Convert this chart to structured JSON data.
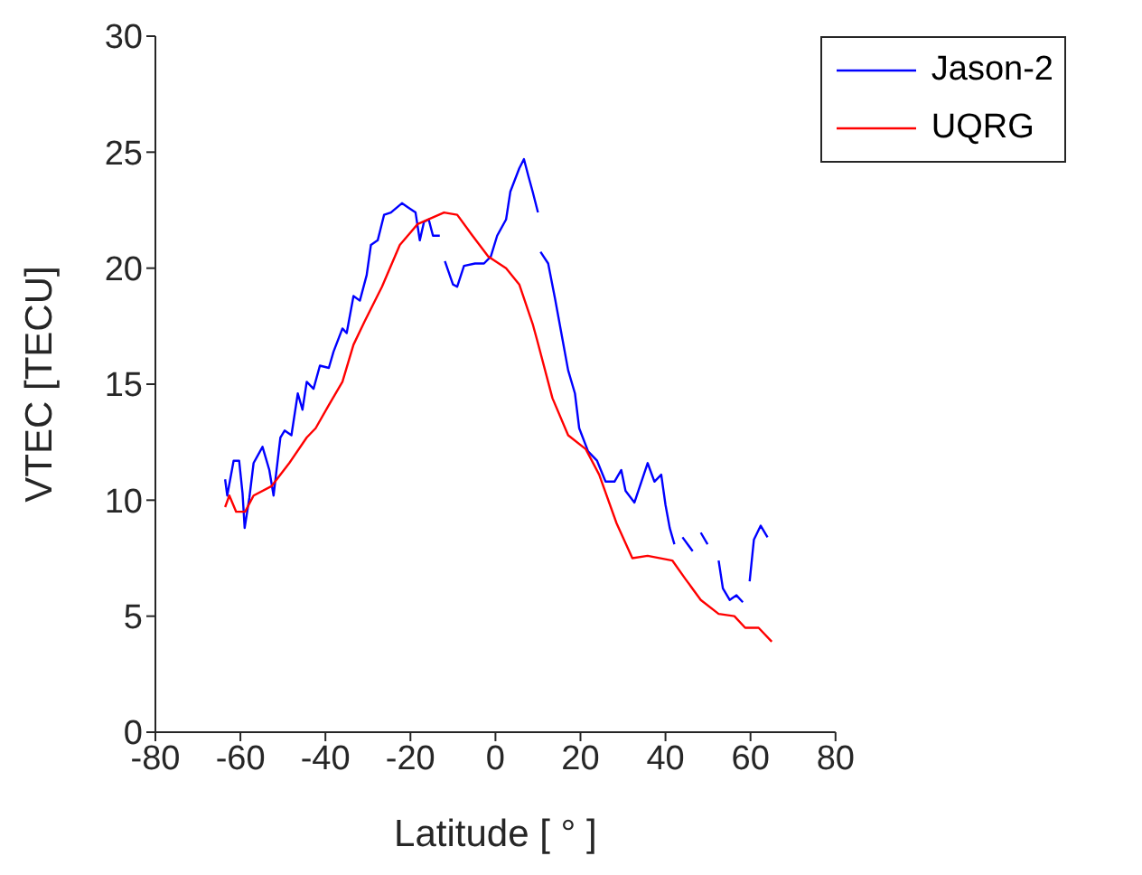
{
  "chart_data": {
    "type": "line",
    "xlabel": "Latitude [ ° ]",
    "ylabel": "VTEC [TECU]",
    "xlim": [
      -80,
      80
    ],
    "xticks": [
      -80,
      -60,
      -40,
      -20,
      0,
      20,
      40,
      60,
      80
    ],
    "ylim": [
      0,
      30
    ],
    "yticks": [
      0,
      5,
      10,
      15,
      20,
      25,
      30
    ],
    "grid": false,
    "legend": "top right",
    "marker": "none",
    "line_style": "solid",
    "series": [
      {
        "name": "Jason-2",
        "color": "#0000ff",
        "x": [
          -63.6,
          -63.1,
          -61.6,
          -60.3,
          -59.5,
          -59.0,
          -57.9,
          -56.9,
          -54.8,
          -53.2,
          -52.2,
          -50.6,
          -49.6,
          -48.0,
          -46.5,
          -45.4,
          -44.4,
          -42.8,
          -41.3,
          -39.2,
          -38.1,
          -36.0,
          -35.0,
          -33.4,
          -31.9,
          -30.3,
          -29.3,
          -27.7,
          -26.2,
          -24.6,
          -22.0,
          -20.4,
          -18.8,
          -17.8,
          -16.8,
          -15.7,
          -14.7,
          -13.1,
          -12.5,
          -11.9,
          -10.0,
          -9.0,
          -7.4,
          -4.8,
          -2.7,
          -1.1,
          0.4,
          2.5,
          3.5,
          5.6,
          6.7,
          7.7,
          8.75,
          10.0,
          10.3,
          10.6,
          12.4,
          14.0,
          15.5,
          17.1,
          18.7,
          19.7,
          21.8,
          23.9,
          25.9,
          28.0,
          29.6,
          30.6,
          32.7,
          35.8,
          37.4,
          39.0,
          40.0,
          41.0,
          42.1,
          43.1,
          44.0,
          46.4,
          47.2,
          48.3,
          49.9,
          51.2,
          52.5,
          53.5,
          55.1,
          56.7,
          58.2,
          59.0,
          59.8,
          60.8,
          62.4,
          64.0
        ],
        "values": [
          10.9,
          10.2,
          11.7,
          11.7,
          10.3,
          8.8,
          10.1,
          11.6,
          12.3,
          11.3,
          10.2,
          12.7,
          13.0,
          12.8,
          14.6,
          13.9,
          15.1,
          14.8,
          15.8,
          15.7,
          16.4,
          17.4,
          17.2,
          18.8,
          18.6,
          19.7,
          21.0,
          21.2,
          22.3,
          22.4,
          22.8,
          22.6,
          22.4,
          21.2,
          22.0,
          22.1,
          21.4,
          21.4,
          null,
          20.3,
          19.3,
          19.2,
          20.1,
          20.2,
          20.2,
          20.5,
          21.4,
          22.1,
          23.3,
          24.3,
          24.7,
          24.0,
          23.3,
          22.4,
          null,
          20.7,
          20.2,
          18.7,
          17.2,
          15.6,
          14.6,
          13.1,
          12.1,
          11.7,
          10.8,
          10.8,
          11.3,
          10.4,
          9.9,
          11.6,
          10.8,
          11.1,
          9.8,
          8.8,
          8.1,
          null,
          8.4,
          7.8,
          null,
          8.6,
          8.1,
          null,
          7.4,
          6.2,
          5.7,
          5.9,
          5.6,
          null,
          6.5,
          8.3,
          8.9,
          8.4
        ]
      },
      {
        "name": "UQRG",
        "color": "#ff0000",
        "x": [
          -63.6,
          -62.6,
          -61.0,
          -58.9,
          -56.9,
          -52.7,
          -48.5,
          -44.4,
          -42.3,
          -39.2,
          -36.0,
          -33.4,
          -30.8,
          -26.7,
          -22.5,
          -18.3,
          -12.1,
          -9.0,
          -5.8,
          -1.7,
          2.5,
          5.6,
          8.75,
          9.8,
          13.4,
          17.1,
          21.25,
          24.4,
          28.5,
          32.2,
          35.8,
          41.6,
          44.7,
          48.3,
          52.5,
          56.2,
          58.75,
          61.9,
          65.0
        ],
        "values": [
          9.7,
          10.2,
          9.5,
          9.5,
          10.2,
          10.6,
          11.6,
          12.7,
          13.1,
          14.1,
          15.1,
          16.7,
          17.7,
          19.2,
          21.0,
          21.9,
          22.4,
          22.3,
          21.5,
          20.5,
          20.0,
          19.3,
          17.6,
          16.9,
          14.4,
          12.8,
          12.2,
          11.1,
          9.0,
          7.5,
          7.6,
          7.4,
          6.6,
          5.7,
          5.1,
          5.0,
          4.5,
          4.5,
          3.9
        ]
      }
    ]
  }
}
